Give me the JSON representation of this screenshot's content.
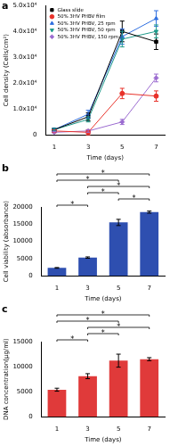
{
  "chart_data": [
    {
      "type": "line",
      "title": "a",
      "xlabel": "Time (days)",
      "ylabel": "Cell density (Cells/cm²)",
      "x": [
        1,
        3,
        5,
        7
      ],
      "xlim": [
        0.5,
        7.5
      ],
      "xticks": [
        1,
        3,
        5,
        7
      ],
      "ylim": [
        0,
        50000
      ],
      "yticks": [
        0,
        {
          "value": 10000,
          "label": "1.0x10⁴"
        },
        {
          "value": 20000,
          "label": "2.0x10⁴"
        },
        {
          "value": 30000,
          "label": "3.0x10⁴"
        },
        {
          "value": 40000,
          "label": "4.0x10⁴"
        },
        {
          "value": 50000,
          "label": "5.0x10⁴"
        }
      ],
      "grid": false,
      "legend": "upper left",
      "series": [
        {
          "name": "Glass slide",
          "color": "#000000",
          "marker": "square",
          "values": [
            2000,
            7000,
            40000,
            36000
          ],
          "errors": [
            500,
            1500,
            4000,
            3000
          ]
        },
        {
          "name": "50% 3HV PHBV film",
          "color": "#e8322a",
          "marker": "circle",
          "values": [
            1500,
            1000,
            16000,
            15000
          ],
          "errors": [
            500,
            1000,
            2000,
            2000
          ]
        },
        {
          "name": "50% 3HV PHBV, 25 rpm",
          "color": "#2f6fe0",
          "marker": "triangle",
          "values": [
            2000,
            8000,
            38000,
            45000
          ],
          "errors": [
            500,
            1500,
            3000,
            3000
          ]
        },
        {
          "name": "50% 3HV PHBV, 50 rpm",
          "color": "#1f9a8a",
          "marker": "triangle-down",
          "values": [
            2000,
            6000,
            37000,
            40000
          ],
          "errors": [
            500,
            1000,
            3000,
            2500
          ]
        },
        {
          "name": "50% 3HV PHBV, 150 rpm",
          "color": "#9b6bd0",
          "marker": "diamond",
          "values": [
            1000,
            1500,
            5000,
            22000
          ],
          "errors": [
            300,
            500,
            1000,
            1500
          ]
        }
      ]
    },
    {
      "type": "bar",
      "title": "b",
      "xlabel": "Time (days)",
      "ylabel": "Cell viability (absorbance)",
      "categories": [
        "1",
        "3",
        "5",
        "7"
      ],
      "values": [
        2300,
        5300,
        15500,
        18500
      ],
      "errors": [
        100,
        200,
        900,
        300
      ],
      "color": "#2e4fb0",
      "ylim": [
        0,
        20000
      ],
      "yticks": [
        0,
        5000,
        10000,
        15000,
        20000
      ],
      "grid": false,
      "annotations": [
        {
          "text": "*",
          "from": "1",
          "to": "3"
        },
        {
          "text": "*",
          "from": "5",
          "to": "7"
        },
        {
          "text": "*",
          "from": "3",
          "to": "5"
        },
        {
          "text": "*",
          "from": "3",
          "to": "7"
        },
        {
          "text": "*",
          "from": "1",
          "to": "5"
        },
        {
          "text": "*",
          "from": "1",
          "to": "7"
        }
      ]
    },
    {
      "type": "bar",
      "title": "c",
      "xlabel": "Time (days)",
      "ylabel": "DNA concentration(μg/ml)",
      "categories": [
        "1",
        "3",
        "5",
        "7"
      ],
      "values": [
        5400,
        8100,
        11200,
        11500
      ],
      "errors": [
        300,
        500,
        1300,
        300
      ],
      "color": "#e03a3a",
      "ylim": [
        0,
        15000
      ],
      "yticks": [
        0,
        5000,
        10000,
        15000
      ],
      "grid": false,
      "annotations": [
        {
          "text": "*",
          "from": "1",
          "to": "3"
        },
        {
          "text": "*",
          "from": "3",
          "to": "5"
        },
        {
          "text": "*",
          "from": "3",
          "to": "7"
        },
        {
          "text": "*",
          "from": "1",
          "to": "5"
        },
        {
          "text": "*",
          "from": "1",
          "to": "7"
        }
      ]
    }
  ]
}
